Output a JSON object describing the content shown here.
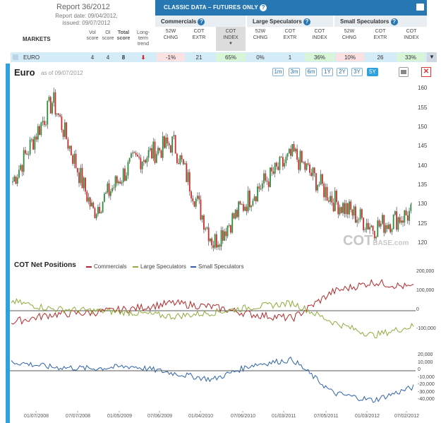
{
  "report": {
    "title": "Report 36/2012",
    "date_line": "Report date: 09/04/2012,",
    "issued_line": "issued: 09/07/2012"
  },
  "header": {
    "classic_label": "CLASSIC DATA – FUTURES ONLY",
    "help_icon": "question-icon",
    "print_icon": "print-icon",
    "groups": [
      "Commercials",
      "Large Speculators",
      "Small Speculators"
    ]
  },
  "columns": {
    "markets": "MARKETS",
    "vol_score": [
      "Vol",
      "score"
    ],
    "oi_score": [
      "OI",
      "score"
    ],
    "total_score": [
      "Total",
      "score"
    ],
    "trend": [
      "Long-",
      "term",
      "trend"
    ],
    "chng": [
      "52W",
      "CHNG"
    ],
    "extr": [
      "COT",
      "EXTR"
    ],
    "index": [
      "COT",
      "INDEX"
    ]
  },
  "row": {
    "market": "EURO",
    "vol": "4",
    "oi": "4",
    "total": "8",
    "trend_icon": "arrow-down-icon",
    "comm_chng": "-1%",
    "comm_extr": "21",
    "comm_index": "65%",
    "large_chng": "0%",
    "large_extr": "1",
    "large_index": "36%",
    "small_chng": "10%",
    "small_extr": "26",
    "small_index": "33%"
  },
  "chart": {
    "title": "Euro",
    "asof": "as of 09/07/2012",
    "ranges": [
      "1m",
      "3m",
      "6m",
      "1Y",
      "2Y",
      "3Y",
      "5Y"
    ],
    "active_range": "5Y",
    "watermark_main": "COT",
    "watermark_sub": "BASE.com",
    "cot_title": "COT Net Positions",
    "legend": [
      "Commercials",
      "Large Speculators",
      "Small Speculators"
    ],
    "colors": {
      "up": "#2e8b3a",
      "down": "#d22a2a",
      "commercials": "#b3292b",
      "large": "#8cae3c",
      "small": "#2f63a8",
      "accent": "#2fa1dc"
    }
  },
  "chart_data": [
    {
      "type": "line",
      "title": "Euro",
      "ylim": [
        118,
        161
      ],
      "yticks": [
        120,
        125,
        130,
        135,
        140,
        145,
        150,
        155,
        160
      ],
      "x": [
        "01/07/2008",
        "07/07/2008",
        "01/05/2009",
        "07/06/2009",
        "01/04/2010",
        "07/06/2010",
        "01/03/2011",
        "07/05/2011",
        "01/03/2012",
        "07/02/2012",
        "09/04/2012"
      ],
      "series": [
        {
          "values": [
            136,
            157,
            128,
            141,
            146,
            120,
            133,
            143,
            131,
            124,
            128
          ]
        }
      ]
    },
    {
      "type": "line",
      "title": "COT Net Positions",
      "yticks": [
        -100000,
        0,
        100000,
        200000
      ],
      "series": [
        {
          "name": "Commercials",
          "values": [
            -60000,
            -20000,
            -10000,
            10000,
            40000,
            20000,
            -20000,
            -40000,
            100000,
            150000,
            120000
          ]
        },
        {
          "name": "Large Speculators",
          "values": [
            50000,
            10000,
            0,
            -10000,
            -30000,
            -10000,
            20000,
            40000,
            -60000,
            -130000,
            -80000
          ]
        }
      ]
    },
    {
      "type": "line",
      "yticks": [
        -40000,
        -30000,
        -20000,
        -10000,
        0,
        10000,
        20000
      ],
      "series": [
        {
          "name": "Small Speculators",
          "values": [
            12000,
            5000,
            3000,
            6000,
            -3000,
            -12000,
            8000,
            15000,
            -30000,
            -40000,
            -22000
          ]
        }
      ]
    }
  ],
  "axis": {
    "price_ticks": [
      "160",
      "155",
      "150",
      "145",
      "140",
      "135",
      "130",
      "125",
      "120"
    ],
    "cot_ticks": [
      "200,000",
      "100,000",
      "0",
      "-100,000"
    ],
    "small_ticks": [
      "20,000",
      "10,000",
      "0",
      "-10,000",
      "-20,000",
      "-30,000",
      "-40,000"
    ],
    "x_ticks": [
      "01/07/2008",
      "07/07/2008",
      "01/05/2009",
      "07/06/2009",
      "01/04/2010",
      "07/06/2010",
      "01/03/2011",
      "07/05/2011",
      "01/03/2012",
      "07/02/2012"
    ]
  }
}
